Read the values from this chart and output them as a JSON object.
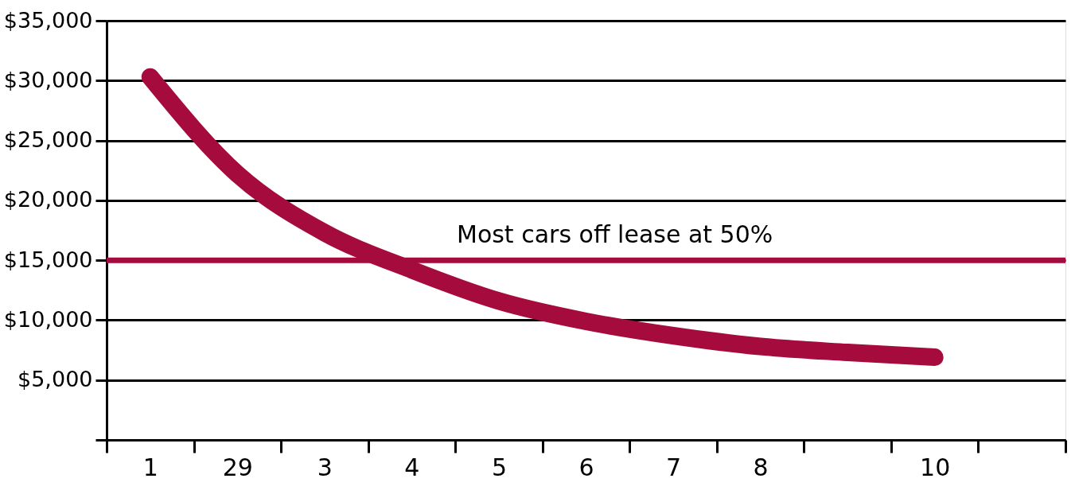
{
  "chart_data": {
    "type": "line",
    "categories": [
      "1",
      "29",
      "3",
      "4",
      "5",
      "6",
      "7",
      "8",
      null,
      "10",
      null
    ],
    "series": [
      {
        "color": "#a50b3c",
        "values": [
          30300,
          22200,
          17300,
          14200,
          11600,
          9900,
          8700,
          7800,
          7300,
          6900,
          null
        ]
      }
    ],
    "ylim": [
      0,
      35000
    ],
    "yticks": [
      {
        "value": 0,
        "label": null
      },
      {
        "value": 5000,
        "label": "$5,000"
      },
      {
        "value": 10000,
        "label": "$10,000"
      },
      {
        "value": 15000,
        "label": "$15,000"
      },
      {
        "value": 20000,
        "label": "$20,000"
      },
      {
        "value": 25000,
        "label": "$25,000"
      },
      {
        "value": 30000,
        "label": "$30,000"
      },
      {
        "value": 35000,
        "label": "$35,000"
      }
    ],
    "ref_lines": [
      {
        "axis": "y",
        "value": 15000,
        "color": "#a50b3c"
      }
    ],
    "annotations": [
      "Most cars off lease at 50%"
    ],
    "grid": "y",
    "marker": "none",
    "line_style": "solid"
  }
}
